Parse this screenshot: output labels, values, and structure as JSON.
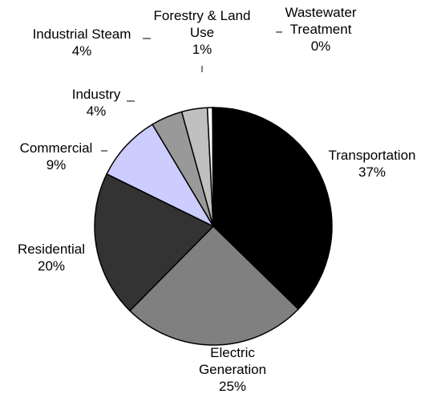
{
  "chart_data": {
    "type": "pie",
    "title": "",
    "start_angle_deg": 0,
    "direction": "clockwise",
    "slices": [
      {
        "label_lines": [
          "Transportation"
        ],
        "percent_label": "37%",
        "value": 37.4,
        "color": "#000000"
      },
      {
        "label_lines": [
          "Electric",
          "Generation"
        ],
        "percent_label": "25%",
        "value": 25.2,
        "color": "#808080"
      },
      {
        "label_lines": [
          "Residential"
        ],
        "percent_label": "20%",
        "value": 19.9,
        "color": "#333333"
      },
      {
        "label_lines": [
          "Commercial"
        ],
        "percent_label": "9%",
        "value": 9.2,
        "color": "#ccccff"
      },
      {
        "label_lines": [
          "Industry"
        ],
        "percent_label": "4%",
        "value": 4.3,
        "color": "#999999"
      },
      {
        "label_lines": [
          "Industrial Steam"
        ],
        "percent_label": "4%",
        "value": 3.5,
        "color": "#c0c0c0"
      },
      {
        "label_lines": [
          "Forestry & Land",
          "Use"
        ],
        "percent_label": "1%",
        "value": 0.7,
        "color": "#ffffff"
      },
      {
        "label_lines": [
          "Wastewater",
          "Treatment"
        ],
        "percent_label": "0%",
        "value": 0.1,
        "color": "#ffffff"
      }
    ]
  }
}
